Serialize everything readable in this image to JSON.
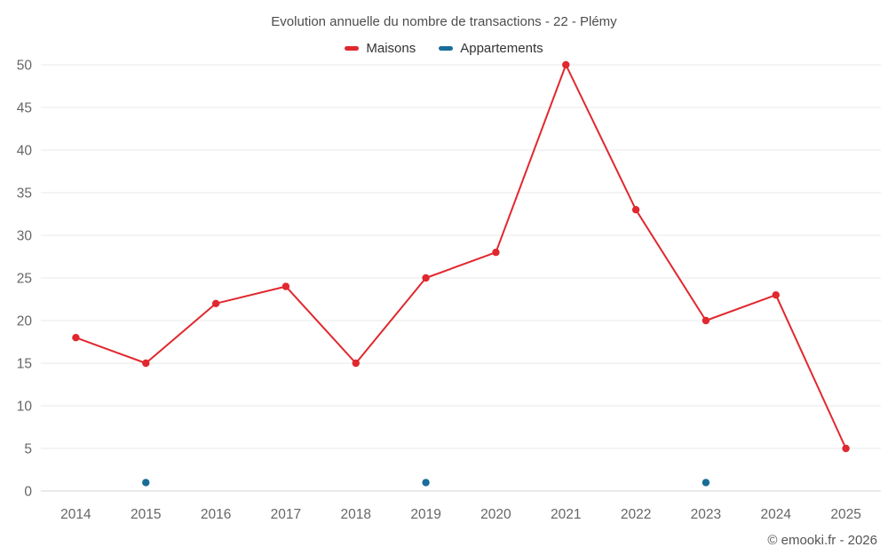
{
  "chart_data": {
    "type": "line",
    "title": "Evolution annuelle du nombre de transactions - 22 - Plémy",
    "categories": [
      "2014",
      "2015",
      "2016",
      "2017",
      "2018",
      "2019",
      "2020",
      "2021",
      "2022",
      "2023",
      "2024",
      "2025"
    ],
    "series": [
      {
        "name": "Maisons",
        "color": "#e0282e",
        "values": [
          18,
          15,
          22,
          24,
          15,
          25,
          28,
          50,
          33,
          20,
          23,
          5
        ]
      },
      {
        "name": "Appartements",
        "color": "#1a6d9a",
        "values": [
          null,
          1,
          null,
          null,
          null,
          1,
          null,
          null,
          null,
          1,
          null,
          null
        ]
      }
    ],
    "ylim": [
      0,
      50
    ],
    "ytick_step": 5,
    "grid": "horizontal",
    "legend_position": "top"
  },
  "footer": {
    "copyright": "© emooki.fr - 2026"
  }
}
